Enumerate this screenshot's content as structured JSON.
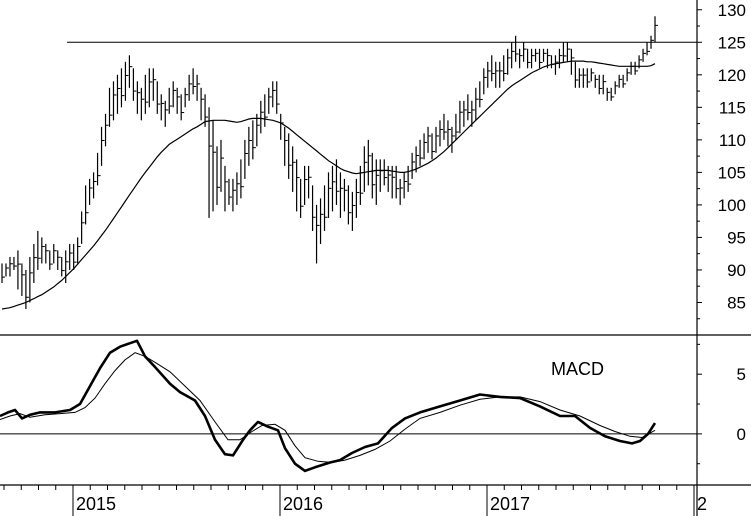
{
  "chart_data": [
    {
      "type": "ohlc",
      "y_ticks": [
        85,
        90,
        95,
        100,
        105,
        110,
        115,
        120,
        125,
        130
      ],
      "ylim": [
        80,
        131.5
      ],
      "horizontal_line": 125,
      "price_bars": [
        [
          88,
          91
        ],
        [
          89,
          91
        ],
        [
          89,
          92
        ],
        [
          90,
          92
        ],
        [
          87,
          93
        ],
        [
          86,
          91
        ],
        [
          84,
          90
        ],
        [
          85,
          92
        ],
        [
          88,
          94
        ],
        [
          90,
          96
        ],
        [
          91,
          95
        ],
        [
          91,
          94
        ],
        [
          90,
          93
        ],
        [
          91,
          94
        ],
        [
          90,
          93
        ],
        [
          89,
          92
        ],
        [
          88,
          93
        ],
        [
          90,
          94
        ],
        [
          90,
          94
        ],
        [
          91,
          95
        ],
        [
          94,
          99
        ],
        [
          97,
          103
        ],
        [
          100,
          104
        ],
        [
          101,
          105
        ],
        [
          103,
          108
        ],
        [
          106,
          112
        ],
        [
          109,
          114
        ],
        [
          112,
          118
        ],
        [
          113,
          119
        ],
        [
          114,
          120
        ],
        [
          115,
          121
        ],
        [
          116,
          122
        ],
        [
          118,
          123
        ],
        [
          116,
          121
        ],
        [
          114,
          119
        ],
        [
          113,
          118
        ],
        [
          114,
          120
        ],
        [
          115,
          121
        ],
        [
          116,
          121
        ],
        [
          114,
          119
        ],
        [
          113,
          117
        ],
        [
          112,
          116
        ],
        [
          114,
          118
        ],
        [
          115,
          119
        ],
        [
          114,
          118
        ],
        [
          113,
          117
        ],
        [
          115,
          118
        ],
        [
          116,
          120
        ],
        [
          117,
          121
        ],
        [
          116,
          120
        ],
        [
          113,
          118
        ],
        [
          112,
          117
        ],
        [
          98,
          115
        ],
        [
          99,
          113
        ],
        [
          100,
          109
        ],
        [
          102,
          110
        ],
        [
          99,
          106
        ],
        [
          100,
          104
        ],
        [
          99,
          104
        ],
        [
          100,
          105
        ],
        [
          101,
          107
        ],
        [
          104,
          110
        ],
        [
          106,
          112
        ],
        [
          107,
          113
        ],
        [
          109,
          114
        ],
        [
          111,
          116
        ],
        [
          112,
          117
        ],
        [
          114,
          118
        ],
        [
          115,
          119
        ],
        [
          114,
          119
        ],
        [
          110,
          114
        ],
        [
          106,
          112
        ],
        [
          104,
          111
        ],
        [
          102,
          109
        ],
        [
          99,
          107
        ],
        [
          98,
          104
        ],
        [
          100,
          106
        ],
        [
          101,
          106
        ],
        [
          96,
          103
        ],
        [
          91,
          100
        ],
        [
          94,
          101
        ],
        [
          96,
          103
        ],
        [
          98,
          105
        ],
        [
          99,
          106
        ],
        [
          100,
          107
        ],
        [
          98,
          105
        ],
        [
          99,
          104
        ],
        [
          97,
          103
        ],
        [
          96,
          102
        ],
        [
          98,
          104
        ],
        [
          100,
          106
        ],
        [
          102,
          109
        ],
        [
          103,
          110
        ],
        [
          101,
          108
        ],
        [
          100,
          107
        ],
        [
          102,
          107
        ],
        [
          103,
          107
        ],
        [
          102,
          106
        ],
        [
          101,
          106
        ],
        [
          101,
          106
        ],
        [
          100,
          104
        ],
        [
          101,
          105
        ],
        [
          102,
          106
        ],
        [
          104,
          108
        ],
        [
          105,
          109
        ],
        [
          106,
          110
        ],
        [
          107,
          111
        ],
        [
          108,
          112
        ],
        [
          107,
          111
        ],
        [
          108,
          112
        ],
        [
          109,
          113
        ],
        [
          110,
          114
        ],
        [
          109,
          113
        ],
        [
          108,
          112
        ],
        [
          110,
          114
        ],
        [
          111,
          116
        ],
        [
          112,
          116
        ],
        [
          113,
          117
        ],
        [
          112,
          116
        ],
        [
          113,
          118
        ],
        [
          115,
          119
        ],
        [
          117,
          121
        ],
        [
          118,
          122
        ],
        [
          119,
          123
        ],
        [
          118,
          122
        ],
        [
          118,
          122
        ],
        [
          119,
          123
        ],
        [
          120,
          124
        ],
        [
          121,
          125
        ],
        [
          122,
          126
        ],
        [
          121,
          124
        ],
        [
          122,
          125
        ],
        [
          121,
          124
        ],
        [
          121,
          124
        ],
        [
          122,
          124
        ],
        [
          121,
          124
        ],
        [
          122,
          124
        ],
        [
          121,
          124
        ],
        [
          121,
          123
        ],
        [
          120,
          123
        ],
        [
          121,
          124
        ],
        [
          122,
          125
        ],
        [
          122,
          125
        ],
        [
          120,
          124
        ],
        [
          118,
          122
        ],
        [
          118,
          121
        ],
        [
          118,
          121
        ],
        [
          118,
          121
        ],
        [
          119,
          121
        ],
        [
          118,
          120
        ],
        [
          117,
          120
        ],
        [
          117,
          120
        ],
        [
          116,
          118
        ],
        [
          116,
          118
        ],
        [
          117,
          119
        ],
        [
          118,
          120
        ],
        [
          118,
          120
        ],
        [
          119,
          121
        ],
        [
          120,
          122
        ],
        [
          120,
          122
        ],
        [
          121,
          123
        ],
        [
          122,
          124
        ],
        [
          123,
          125
        ],
        [
          124,
          126
        ],
        [
          125,
          129
        ]
      ],
      "moving_average": [
        84,
        84.1,
        84.2,
        84.4,
        84.6,
        84.8,
        85,
        85.3,
        85.6,
        85.9,
        86.2,
        86.6,
        87,
        87.4,
        87.9,
        88.4,
        89,
        89.6,
        90.2,
        90.9,
        91.6,
        92.3,
        93,
        93.7,
        94.5,
        95.3,
        96.1,
        97,
        97.9,
        98.8,
        99.7,
        100.6,
        101.5,
        102.4,
        103.3,
        104.2,
        105,
        105.8,
        106.6,
        107.4,
        108.1,
        108.7,
        109.3,
        109.7,
        110.1,
        110.5,
        110.9,
        111.3,
        111.7,
        112,
        112.4,
        112.8,
        112.9,
        113,
        113,
        113,
        113,
        112.9,
        112.8,
        112.7,
        112.8,
        113,
        113.2,
        113.3,
        113.3,
        113.3,
        113.2,
        113.1,
        113,
        112.8,
        112.6,
        112.2,
        111.8,
        111.3,
        110.8,
        110.3,
        109.8,
        109.3,
        108.8,
        108.3,
        107.8,
        107.3,
        106.8,
        106.4,
        106,
        105.6,
        105.3,
        105.1,
        104.9,
        104.8,
        104.9,
        105,
        105.1,
        105.2,
        105.3,
        105.3,
        105.3,
        105.3,
        105.2,
        105.1,
        105,
        105,
        105.1,
        105.3,
        105.5,
        105.8,
        106.1,
        106.4,
        106.8,
        107.2,
        107.7,
        108.2,
        108.8,
        109.4,
        110,
        110.6,
        111.2,
        111.8,
        112.4,
        113,
        113.6,
        114.2,
        114.8,
        115.4,
        116,
        116.6,
        117.2,
        117.8,
        118.3,
        118.7,
        119.1,
        119.5,
        119.9,
        120.3,
        120.6,
        120.9,
        121.2,
        121.4,
        121.6,
        121.7,
        121.8,
        121.9,
        122,
        122.1,
        122.1,
        122.1,
        122.1,
        122,
        122,
        121.9,
        121.8,
        121.7,
        121.6,
        121.5,
        121.4,
        121.3,
        121.3,
        121.3,
        121.3,
        121.3,
        121.3,
        121.3,
        121.3,
        121.4,
        121.7
      ]
    },
    {
      "type": "line",
      "label": "MACD",
      "y_ticks": [
        0,
        5
      ],
      "ylim": [
        -4.2,
        8.2
      ],
      "zero_line": 0,
      "series": [
        {
          "style": "thick",
          "points": [
            [
              0,
              1.5
            ],
            [
              8,
              1.8
            ],
            [
              15,
              2
            ],
            [
              22,
              1.3
            ],
            [
              30,
              1.6
            ],
            [
              40,
              1.8
            ],
            [
              55,
              1.8
            ],
            [
              70,
              2
            ],
            [
              80,
              2.5
            ],
            [
              90,
              4
            ],
            [
              100,
              5.5
            ],
            [
              110,
              6.8
            ],
            [
              120,
              7.3
            ],
            [
              130,
              7.6
            ],
            [
              137,
              7.8
            ],
            [
              145,
              6.5
            ],
            [
              155,
              5.6
            ],
            [
              170,
              4.2
            ],
            [
              180,
              3.5
            ],
            [
              195,
              2.8
            ],
            [
              205,
              1.5
            ],
            [
              215,
              -0.5
            ],
            [
              225,
              -1.7
            ],
            [
              233,
              -1.8
            ],
            [
              243,
              -0.5
            ],
            [
              250,
              0.3
            ],
            [
              258,
              1
            ],
            [
              268,
              0.6
            ],
            [
              278,
              0.3
            ],
            [
              285,
              -1.2
            ],
            [
              295,
              -2.5
            ],
            [
              305,
              -3.1
            ],
            [
              315,
              -2.8
            ],
            [
              330,
              -2.4
            ],
            [
              340,
              -2.2
            ],
            [
              352,
              -1.6
            ],
            [
              365,
              -1.1
            ],
            [
              378,
              -0.8
            ],
            [
              392,
              0.5
            ],
            [
              405,
              1.3
            ],
            [
              420,
              1.8
            ],
            [
              440,
              2.3
            ],
            [
              460,
              2.8
            ],
            [
              480,
              3.3
            ],
            [
              500,
              3.1
            ],
            [
              520,
              3
            ],
            [
              540,
              2.3
            ],
            [
              560,
              1.5
            ],
            [
              575,
              1.5
            ],
            [
              590,
              0.5
            ],
            [
              605,
              -0.2
            ],
            [
              620,
              -0.6
            ],
            [
              632,
              -0.8
            ],
            [
              640,
              -0.6
            ],
            [
              648,
              0
            ],
            [
              655,
              0.9
            ]
          ]
        },
        {
          "style": "thin",
          "points": [
            [
              0,
              1.2
            ],
            [
              10,
              1.5
            ],
            [
              20,
              1.7
            ],
            [
              30,
              1.4
            ],
            [
              45,
              1.6
            ],
            [
              60,
              1.7
            ],
            [
              75,
              1.8
            ],
            [
              85,
              2.2
            ],
            [
              95,
              3
            ],
            [
              105,
              4.2
            ],
            [
              115,
              5.3
            ],
            [
              125,
              6.2
            ],
            [
              135,
              6.8
            ],
            [
              145,
              6.5
            ],
            [
              155,
              6
            ],
            [
              170,
              5.2
            ],
            [
              185,
              4
            ],
            [
              200,
              2.8
            ],
            [
              215,
              1
            ],
            [
              228,
              -0.5
            ],
            [
              240,
              -0.5
            ],
            [
              252,
              0.2
            ],
            [
              262,
              0.7
            ],
            [
              275,
              0.8
            ],
            [
              285,
              0.3
            ],
            [
              295,
              -1
            ],
            [
              305,
              -2
            ],
            [
              318,
              -2.3
            ],
            [
              332,
              -2.4
            ],
            [
              345,
              -2.2
            ],
            [
              360,
              -1.8
            ],
            [
              375,
              -1.3
            ],
            [
              390,
              -0.6
            ],
            [
              405,
              0.4
            ],
            [
              420,
              1.3
            ],
            [
              440,
              1.8
            ],
            [
              460,
              2.4
            ],
            [
              480,
              2.9
            ],
            [
              500,
              3.1
            ],
            [
              520,
              3.1
            ],
            [
              540,
              2.7
            ],
            [
              560,
              2
            ],
            [
              580,
              1.5
            ],
            [
              600,
              0.7
            ],
            [
              615,
              0.2
            ],
            [
              630,
              -0.2
            ],
            [
              642,
              -0.3
            ],
            [
              655,
              0.3
            ]
          ]
        }
      ]
    }
  ],
  "x_axis": {
    "year_labels": [
      "2015",
      "2016",
      "2017",
      "2"
    ]
  },
  "labels": {
    "macd": "MACD"
  }
}
